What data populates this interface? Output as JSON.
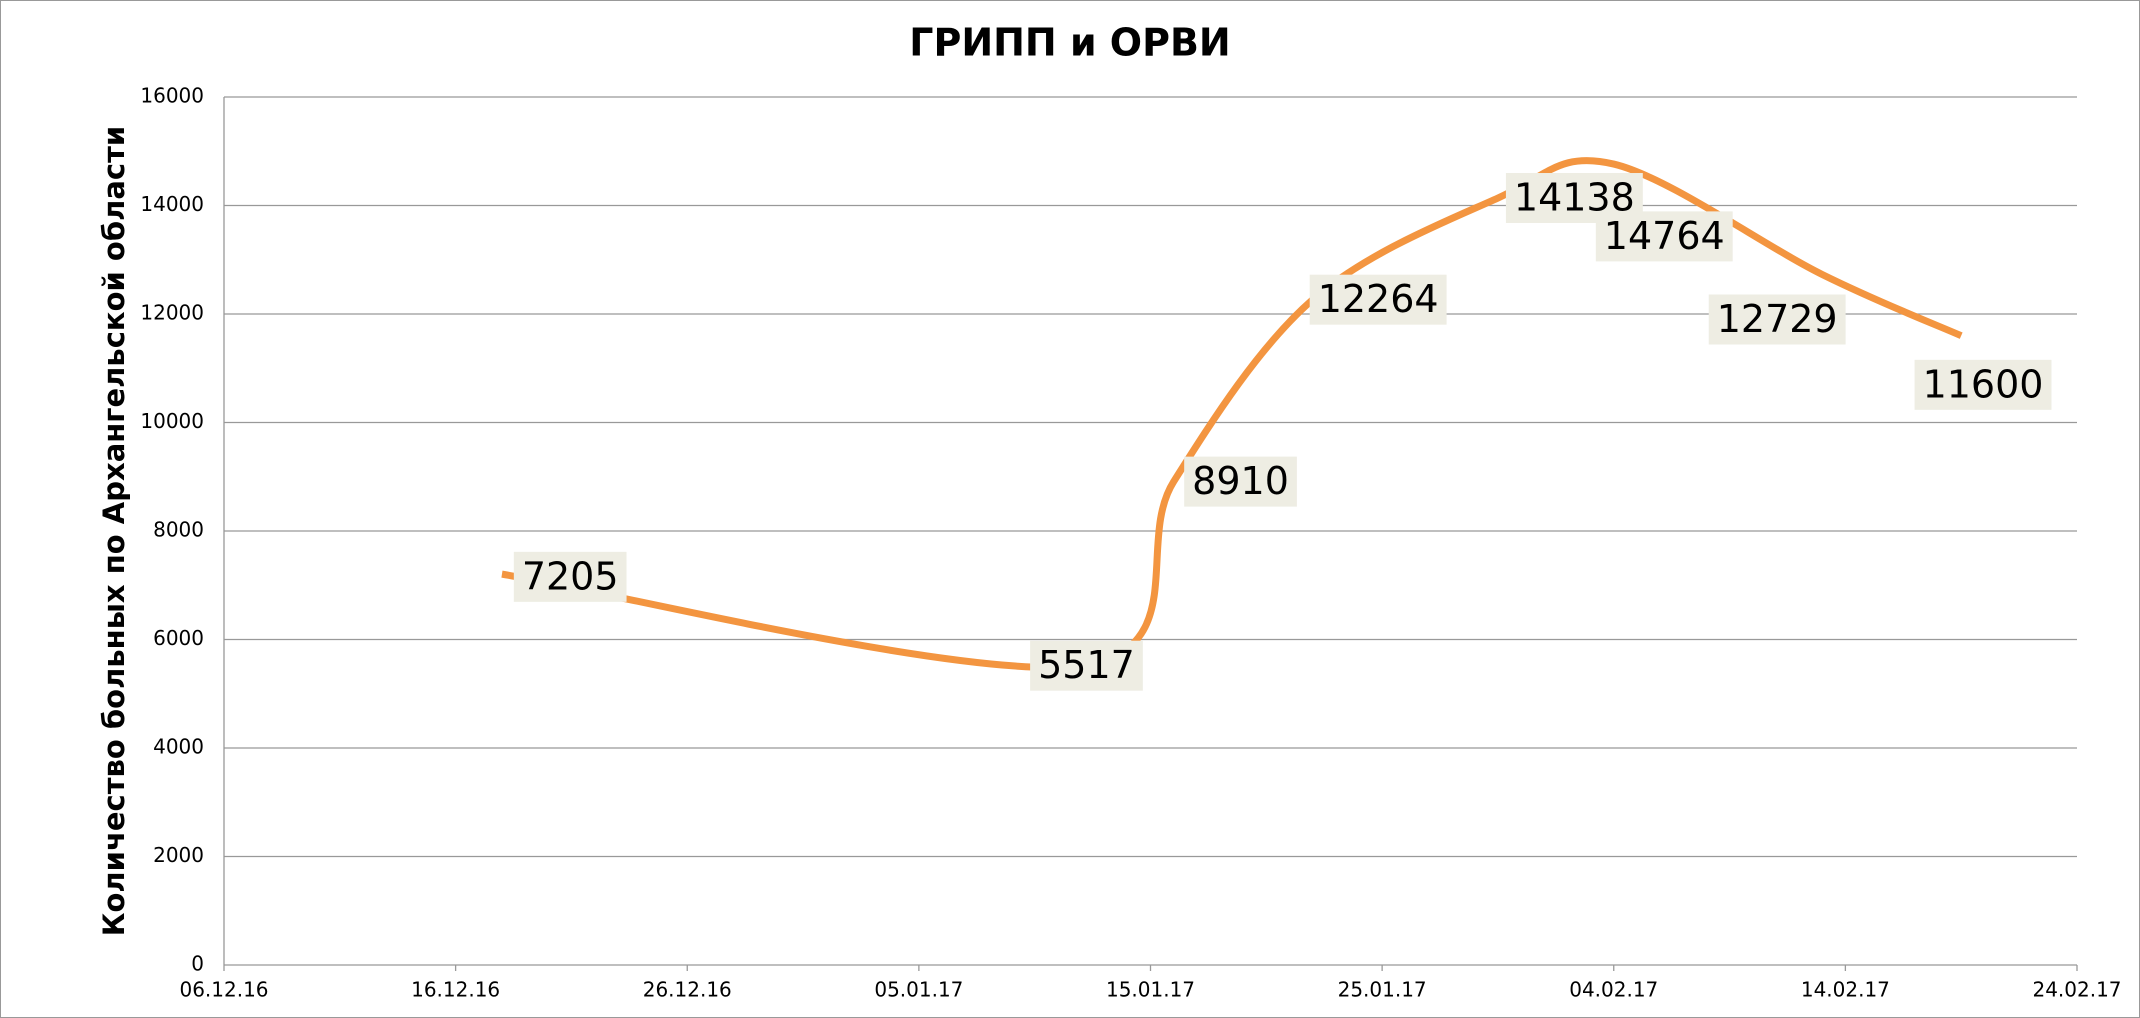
{
  "chart_data": {
    "type": "line",
    "title": "ГРИПП и ОРВИ",
    "y_label": "Количество больных по Архангельской области",
    "x": [
      "18.12.16",
      "12.01.17",
      "16.01.17",
      "22.01.17",
      "30.01.17",
      "04.02.17",
      "13.02.17",
      "19.02.17"
    ],
    "series": [
      {
        "name": "ГРИПП и ОРВИ",
        "color": "#f39540",
        "values": [
          7205,
          5517,
          8910,
          12264,
          14138,
          14764,
          12729,
          11600
        ]
      }
    ],
    "xlim": [
      "06.12.16",
      "24.02.17"
    ],
    "xticks": [
      "06.12.16",
      "16.12.16",
      "26.12.16",
      "05.01.17",
      "15.01.17",
      "25.01.17",
      "04.02.17",
      "14.02.17",
      "24.02.17"
    ],
    "ylim": [
      0,
      16000
    ],
    "yticks": [
      0,
      2000,
      4000,
      6000,
      8000,
      10000,
      12000,
      14000,
      16000
    ],
    "grid": true
  }
}
